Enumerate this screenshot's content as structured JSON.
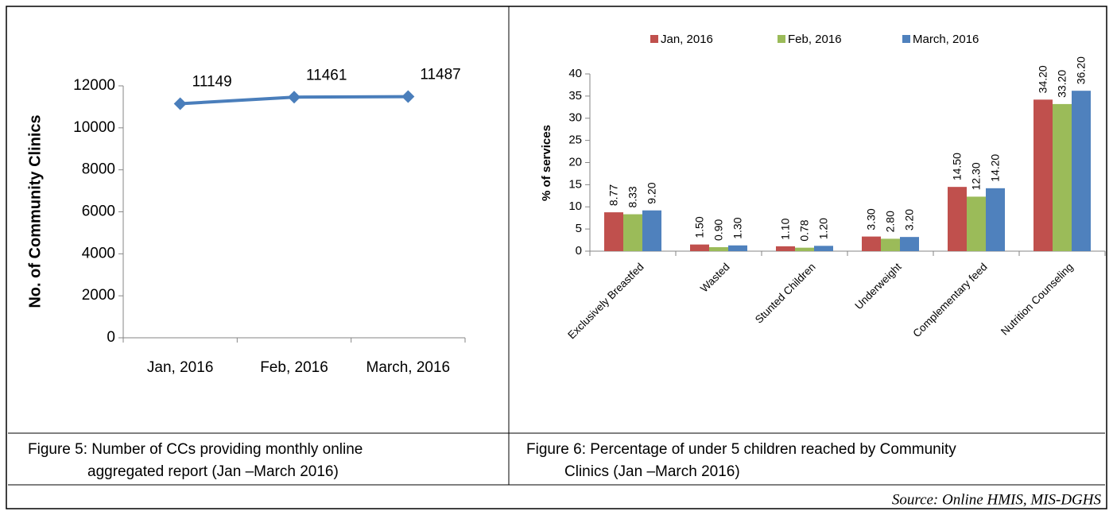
{
  "chart_data": [
    {
      "type": "line",
      "ylabel": "No. of Community Clinics",
      "categories": [
        "Jan, 2016",
        "Feb, 2016",
        "March, 2016"
      ],
      "values": [
        11149,
        11461,
        11487
      ],
      "color": "#4a7ebb",
      "ylim": [
        0,
        12000
      ],
      "yticks": [
        0,
        2000,
        4000,
        6000,
        8000,
        10000,
        12000
      ]
    },
    {
      "type": "bar",
      "ylabel": "% of services",
      "categories": [
        "Exclusively Breastfed",
        "Wasted",
        "Stunted Children",
        "Underweight",
        "Complementary feed",
        "Nutrition Counseling"
      ],
      "series": [
        {
          "name": "Jan, 2016",
          "color": "#c0504d",
          "values": [
            8.77,
            1.5,
            1.1,
            3.3,
            14.5,
            34.2
          ],
          "value_labels": [
            "8.77",
            "1.50",
            "1.10",
            "3.30",
            "14.50",
            "34.20"
          ]
        },
        {
          "name": "Feb, 2016",
          "color": "#9bbb59",
          "values": [
            8.33,
            0.9,
            0.78,
            2.8,
            12.3,
            33.2
          ],
          "value_labels": [
            "8.33",
            "0.90",
            "0.78",
            "2.80",
            "12.30",
            "33.20"
          ]
        },
        {
          "name": "March, 2016",
          "color": "#4f81bd",
          "values": [
            9.2,
            1.3,
            1.2,
            3.2,
            14.2,
            36.2
          ],
          "value_labels": [
            "9.20",
            "1.30",
            "1.20",
            "3.20",
            "14.20",
            "36.20"
          ]
        }
      ],
      "ylim": [
        0,
        40
      ],
      "yticks": [
        0,
        5,
        10,
        15,
        20,
        25,
        30,
        35,
        40
      ],
      "legend": "top"
    }
  ],
  "captions": [
    [
      "Figure 5: Number of CCs providing monthly online",
      "aggregated report (Jan –March  2016)"
    ],
    [
      "Figure 6: Percentage of under 5 children reached by Community",
      "Clinics (Jan –March  2016)"
    ]
  ],
  "source": "Source: Online HMIS, MIS-DGHS"
}
